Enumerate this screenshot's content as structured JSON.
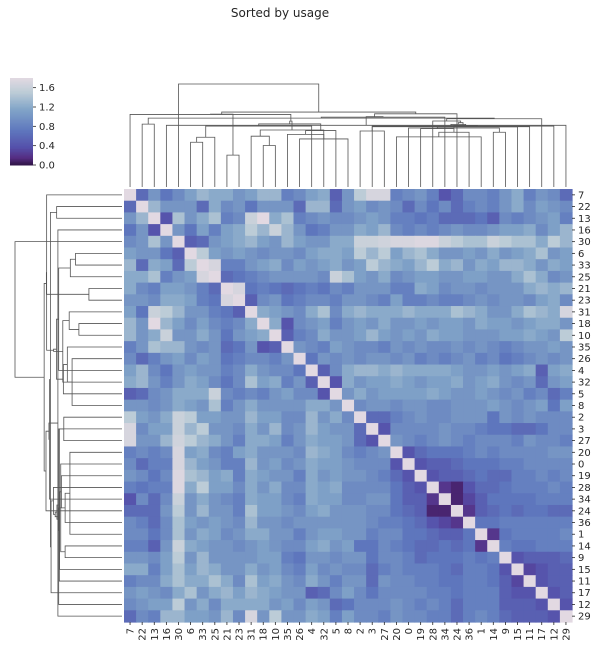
{
  "chart_data": {
    "type": "heatmap",
    "title": "Sorted by usage",
    "labels": [
      "7",
      "22",
      "13",
      "16",
      "30",
      "6",
      "33",
      "25",
      "21",
      "23",
      "31",
      "18",
      "10",
      "35",
      "26",
      "4",
      "32",
      "5",
      "8",
      "2",
      "3",
      "27",
      "20",
      "0",
      "19",
      "28",
      "34",
      "24",
      "36",
      "1",
      "14",
      "9",
      "15",
      "11",
      "17",
      "12",
      "29"
    ],
    "colorbar": {
      "ticks": [
        "0.0",
        "0.4",
        "0.8",
        "1.2",
        "1.6"
      ],
      "min": 0.0,
      "max": 1.8,
      "colormap": "twilight_shifted"
    },
    "values": [
      [
        1.8,
        0.6,
        1.0,
        0.7,
        0.9,
        1.1,
        1.3,
        1.2,
        1.2,
        1.0,
        1.1,
        1.3,
        1.3,
        0.8,
        0.9,
        1.1,
        1.2,
        0.5,
        1.0,
        1.5,
        1.7,
        1.7,
        0.8,
        0.9,
        1.0,
        0.8,
        0.4,
        0.6,
        0.9,
        0.9,
        0.8,
        1.0,
        1.2,
        0.8,
        1.0,
        0.9,
        0.6
      ],
      [
        0.6,
        1.8,
        1.3,
        1.0,
        1.0,
        1.0,
        0.6,
        1.2,
        0.9,
        1.0,
        0.7,
        1.0,
        1.0,
        1.0,
        0.6,
        1.3,
        1.3,
        0.6,
        1.0,
        1.1,
        0.9,
        1.0,
        0.9,
        0.6,
        0.9,
        0.7,
        0.9,
        0.6,
        0.8,
        0.9,
        0.8,
        1.0,
        1.2,
        0.9,
        1.1,
        1.0,
        0.9
      ],
      [
        1.0,
        1.3,
        1.8,
        0.4,
        1.4,
        1.0,
        1.2,
        1.4,
        0.8,
        0.9,
        1.6,
        1.8,
        1.2,
        1.4,
        0.8,
        0.9,
        1.0,
        0.9,
        0.9,
        1.0,
        1.1,
        1.0,
        0.8,
        0.8,
        0.7,
        0.8,
        0.6,
        0.6,
        0.6,
        0.7,
        0.5,
        0.9,
        0.8,
        0.9,
        1.0,
        1.1,
        0.8
      ],
      [
        0.7,
        1.0,
        0.4,
        1.8,
        1.0,
        0.7,
        1.1,
        0.8,
        1.1,
        1.2,
        1.5,
        1.3,
        1.6,
        1.3,
        1.0,
        0.7,
        0.8,
        1.0,
        1.0,
        1.2,
        1.1,
        1.3,
        0.9,
        0.8,
        0.9,
        0.8,
        0.9,
        1.0,
        0.9,
        0.9,
        1.0,
        1.1,
        1.1,
        1.2,
        0.9,
        1.1,
        1.3
      ],
      [
        0.9,
        1.0,
        1.4,
        1.0,
        1.8,
        0.5,
        0.6,
        1.0,
        1.1,
        1.2,
        1.3,
        1.1,
        1.0,
        1.3,
        1.1,
        1.0,
        1.0,
        1.2,
        1.2,
        1.6,
        1.6,
        1.65,
        1.7,
        1.7,
        1.75,
        1.75,
        1.6,
        1.5,
        1.4,
        1.4,
        1.6,
        1.5,
        1.4,
        1.4,
        1.2,
        1.5,
        1.3
      ],
      [
        1.1,
        1.0,
        1.0,
        0.7,
        0.5,
        1.8,
        1.5,
        1.1,
        1.0,
        1.1,
        1.0,
        0.9,
        1.0,
        1.0,
        0.9,
        1.1,
        1.2,
        1.2,
        1.1,
        1.5,
        1.3,
        1.5,
        1.1,
        1.3,
        1.4,
        1.2,
        1.0,
        1.0,
        1.1,
        1.0,
        1.2,
        1.0,
        1.1,
        1.2,
        1.4,
        1.0,
        1.1
      ],
      [
        1.3,
        0.6,
        1.2,
        1.1,
        0.6,
        1.5,
        1.8,
        1.7,
        0.8,
        0.8,
        1.0,
        1.1,
        1.2,
        0.9,
        1.1,
        1.0,
        1.1,
        1.2,
        1.0,
        1.1,
        1.5,
        1.3,
        1.2,
        1.1,
        1.3,
        1.5,
        1.2,
        1.3,
        1.0,
        1.2,
        1.1,
        1.3,
        1.3,
        1.2,
        1.0,
        1.2,
        1.1
      ],
      [
        1.2,
        1.2,
        1.4,
        0.8,
        1.0,
        1.1,
        1.7,
        1.8,
        0.6,
        0.7,
        0.8,
        0.9,
        1.0,
        1.0,
        1.0,
        1.0,
        0.9,
        1.6,
        1.4,
        1.1,
        1.0,
        1.2,
        0.9,
        1.0,
        1.1,
        1.1,
        1.0,
        1.0,
        1.1,
        1.1,
        1.0,
        1.0,
        1.2,
        1.4,
        1.2,
        0.9,
        1.0
      ],
      [
        1.2,
        0.9,
        0.8,
        1.1,
        1.1,
        1.0,
        0.8,
        0.6,
        1.8,
        1.7,
        0.7,
        0.8,
        0.7,
        0.6,
        0.7,
        0.8,
        0.7,
        0.9,
        0.8,
        1.0,
        1.0,
        1.0,
        0.8,
        0.8,
        1.2,
        1.1,
        0.9,
        1.0,
        1.0,
        0.9,
        1.0,
        1.0,
        1.0,
        1.2,
        1.3,
        1.2,
        1.3
      ],
      [
        1.0,
        1.0,
        0.9,
        1.2,
        1.2,
        1.1,
        0.8,
        0.7,
        1.7,
        1.8,
        0.5,
        0.9,
        1.0,
        0.7,
        0.8,
        0.9,
        0.9,
        0.8,
        1.0,
        1.0,
        0.9,
        0.8,
        1.1,
        0.8,
        0.8,
        0.9,
        0.8,
        0.8,
        0.9,
        1.0,
        0.9,
        1.0,
        1.0,
        0.9,
        1.1,
        1.2,
        0.9
      ],
      [
        1.1,
        0.7,
        1.6,
        1.5,
        1.3,
        1.0,
        1.0,
        0.8,
        0.7,
        0.5,
        1.8,
        1.2,
        1.1,
        1.0,
        0.9,
        1.2,
        1.4,
        0.9,
        1.2,
        1.3,
        1.2,
        1.2,
        1.2,
        1.3,
        1.2,
        1.2,
        1.2,
        1.4,
        1.3,
        1.2,
        1.0,
        1.0,
        1.2,
        1.4,
        1.3,
        1.2,
        1.7
      ],
      [
        1.3,
        1.0,
        1.8,
        1.3,
        1.1,
        0.9,
        1.1,
        0.9,
        0.8,
        0.9,
        1.2,
        1.8,
        1.2,
        0.4,
        0.9,
        1.0,
        1.1,
        0.8,
        1.0,
        1.1,
        1.0,
        1.2,
        1.0,
        1.0,
        1.1,
        1.0,
        1.1,
        1.1,
        1.0,
        1.2,
        1.1,
        1.1,
        1.0,
        1.1,
        1.2,
        1.2,
        1.0
      ],
      [
        1.3,
        1.0,
        1.2,
        1.6,
        1.0,
        1.0,
        1.2,
        1.0,
        0.7,
        1.0,
        1.1,
        1.2,
        1.8,
        0.5,
        0.8,
        0.9,
        1.2,
        1.0,
        1.0,
        1.1,
        1.3,
        1.1,
        1.0,
        1.1,
        1.0,
        1.2,
        1.1,
        1.1,
        1.0,
        1.0,
        1.0,
        1.1,
        1.1,
        1.2,
        1.1,
        1.0,
        1.5
      ],
      [
        0.8,
        1.0,
        1.4,
        1.3,
        1.3,
        1.0,
        0.9,
        1.0,
        0.6,
        0.7,
        1.0,
        0.4,
        0.5,
        1.8,
        1.0,
        0.9,
        0.8,
        1.1,
        1.0,
        0.9,
        0.9,
        0.8,
        1.0,
        0.9,
        1.0,
        0.9,
        0.9,
        1.0,
        0.9,
        1.0,
        0.9,
        0.8,
        0.9,
        1.0,
        1.0,
        1.1,
        1.0
      ],
      [
        0.9,
        0.6,
        0.8,
        1.0,
        1.1,
        0.9,
        1.1,
        1.0,
        0.7,
        0.8,
        0.9,
        0.9,
        0.8,
        1.0,
        1.8,
        0.7,
        1.0,
        0.9,
        1.0,
        0.9,
        1.0,
        1.0,
        0.9,
        1.0,
        0.8,
        0.9,
        0.8,
        0.9,
        1.0,
        0.8,
        0.9,
        0.7,
        0.8,
        0.9,
        1.0,
        0.9,
        1.0
      ],
      [
        1.1,
        1.3,
        0.9,
        0.7,
        1.0,
        1.1,
        1.0,
        1.0,
        0.8,
        0.9,
        1.2,
        1.0,
        0.9,
        0.9,
        0.7,
        1.8,
        0.5,
        0.9,
        1.2,
        1.3,
        1.3,
        1.2,
        1.3,
        1.2,
        1.2,
        1.2,
        1.2,
        1.1,
        1.0,
        1.0,
        1.1,
        1.0,
        1.1,
        1.2,
        0.5,
        1.1,
        1.2
      ],
      [
        1.2,
        1.3,
        1.0,
        0.8,
        1.0,
        1.2,
        1.1,
        0.9,
        0.7,
        0.9,
        1.4,
        1.1,
        1.2,
        0.8,
        1.0,
        0.5,
        1.8,
        0.4,
        1.2,
        1.0,
        1.1,
        1.1,
        1.2,
        1.1,
        1.0,
        1.1,
        1.1,
        1.2,
        1.0,
        1.1,
        1.2,
        1.0,
        0.9,
        1.0,
        0.6,
        1.0,
        1.1
      ],
      [
        0.5,
        0.6,
        0.9,
        1.0,
        1.2,
        1.2,
        1.2,
        1.6,
        0.9,
        0.8,
        0.9,
        0.8,
        1.0,
        1.1,
        0.9,
        0.9,
        0.4,
        1.8,
        1.0,
        1.2,
        1.0,
        1.1,
        1.1,
        1.1,
        1.1,
        1.2,
        1.1,
        1.0,
        1.0,
        1.1,
        1.0,
        0.9,
        1.0,
        0.8,
        0.9,
        0.6,
        0.8
      ],
      [
        1.0,
        1.0,
        0.9,
        1.0,
        1.2,
        1.1,
        1.0,
        1.4,
        0.8,
        1.0,
        1.2,
        1.0,
        1.0,
        1.0,
        1.0,
        1.2,
        1.2,
        1.0,
        1.8,
        0.9,
        1.0,
        1.0,
        0.9,
        1.0,
        1.0,
        0.9,
        0.9,
        1.0,
        1.0,
        1.0,
        1.1,
        1.0,
        0.9,
        1.0,
        1.1,
        0.7,
        1.1
      ],
      [
        1.5,
        1.1,
        1.0,
        1.2,
        1.6,
        1.5,
        1.1,
        1.1,
        1.0,
        1.0,
        1.3,
        1.1,
        1.1,
        0.9,
        0.9,
        1.3,
        1.0,
        1.2,
        0.9,
        1.8,
        0.6,
        0.6,
        0.8,
        0.9,
        1.0,
        0.9,
        0.9,
        1.0,
        1.0,
        1.0,
        0.7,
        1.0,
        0.9,
        1.0,
        0.9,
        0.9,
        0.9
      ],
      [
        1.7,
        0.9,
        1.1,
        1.1,
        1.6,
        1.3,
        1.5,
        1.0,
        1.0,
        0.9,
        1.2,
        1.0,
        1.3,
        0.9,
        1.0,
        1.3,
        1.1,
        1.0,
        1.0,
        0.6,
        1.8,
        0.4,
        0.9,
        0.9,
        0.9,
        0.9,
        1.0,
        0.9,
        0.9,
        0.8,
        0.7,
        0.7,
        0.6,
        0.6,
        0.7,
        0.9,
        0.9
      ],
      [
        1.7,
        1.0,
        1.0,
        1.3,
        1.65,
        1.5,
        1.3,
        1.2,
        1.0,
        0.8,
        1.2,
        1.2,
        1.1,
        0.8,
        1.0,
        1.2,
        1.1,
        1.1,
        1.0,
        0.6,
        0.4,
        1.8,
        1.0,
        0.9,
        0.8,
        0.9,
        1.0,
        0.9,
        0.8,
        0.9,
        0.9,
        0.9,
        0.8,
        1.0,
        0.9,
        0.9,
        0.8
      ],
      [
        0.8,
        0.9,
        0.8,
        0.9,
        1.7,
        1.1,
        1.2,
        0.9,
        0.8,
        1.1,
        1.2,
        1.0,
        1.0,
        1.0,
        0.9,
        1.3,
        1.2,
        1.1,
        0.9,
        0.8,
        0.9,
        1.0,
        1.8,
        0.4,
        0.6,
        0.7,
        0.7,
        0.7,
        0.8,
        0.9,
        0.8,
        0.9,
        0.9,
        0.9,
        0.9,
        1.0,
        1.0
      ],
      [
        0.9,
        0.6,
        0.8,
        0.8,
        1.7,
        1.3,
        1.1,
        1.0,
        0.8,
        0.8,
        1.3,
        1.0,
        1.1,
        0.9,
        1.0,
        1.2,
        1.1,
        1.1,
        1.0,
        0.9,
        0.9,
        0.9,
        0.4,
        1.8,
        0.4,
        0.5,
        0.5,
        0.6,
        0.7,
        0.7,
        0.7,
        0.8,
        0.8,
        0.9,
        0.9,
        0.9,
        0.9
      ],
      [
        1.0,
        0.9,
        0.7,
        0.9,
        1.75,
        1.4,
        1.3,
        1.1,
        1.2,
        0.8,
        1.2,
        1.1,
        1.0,
        1.0,
        0.8,
        1.2,
        1.0,
        1.1,
        1.0,
        1.0,
        0.9,
        0.8,
        0.6,
        0.4,
        1.8,
        0.4,
        0.5,
        0.5,
        0.6,
        0.7,
        0.6,
        0.6,
        0.8,
        0.8,
        0.9,
        0.8,
        0.9
      ],
      [
        0.8,
        0.7,
        0.8,
        0.8,
        1.75,
        1.2,
        1.5,
        1.1,
        1.1,
        0.9,
        1.2,
        1.0,
        1.2,
        0.9,
        0.9,
        1.2,
        1.1,
        1.2,
        0.9,
        0.9,
        0.9,
        0.9,
        0.7,
        0.5,
        0.4,
        1.8,
        0.2,
        0.1,
        0.4,
        0.6,
        0.6,
        0.7,
        0.8,
        0.8,
        0.8,
        0.9,
        0.8
      ],
      [
        0.4,
        0.9,
        0.6,
        0.9,
        1.6,
        1.0,
        1.2,
        1.0,
        0.9,
        0.8,
        1.2,
        1.1,
        1.1,
        0.9,
        0.8,
        1.2,
        1.1,
        1.1,
        0.9,
        0.9,
        1.0,
        1.0,
        0.7,
        0.5,
        0.5,
        0.2,
        1.8,
        0.1,
        0.3,
        0.5,
        0.7,
        0.7,
        0.7,
        0.7,
        0.8,
        0.8,
        0.8
      ],
      [
        0.6,
        0.6,
        0.6,
        1.0,
        1.5,
        1.0,
        1.3,
        1.0,
        1.0,
        0.8,
        1.4,
        1.1,
        1.1,
        1.0,
        0.9,
        1.1,
        1.2,
        1.0,
        1.0,
        1.0,
        0.9,
        0.9,
        0.7,
        0.6,
        0.5,
        0.1,
        0.1,
        1.8,
        0.2,
        0.5,
        0.6,
        0.7,
        0.6,
        0.7,
        0.7,
        0.6,
        0.6
      ],
      [
        0.9,
        0.8,
        0.6,
        0.9,
        1.4,
        1.1,
        1.0,
        1.1,
        1.0,
        0.9,
        1.3,
        1.0,
        1.0,
        0.9,
        1.0,
        1.0,
        1.0,
        1.0,
        1.0,
        1.0,
        0.9,
        0.8,
        0.8,
        0.7,
        0.6,
        0.4,
        0.3,
        0.2,
        1.8,
        0.7,
        0.7,
        0.8,
        0.8,
        0.8,
        0.8,
        0.8,
        0.8
      ],
      [
        0.9,
        0.9,
        0.7,
        0.9,
        1.4,
        1.0,
        1.2,
        1.1,
        0.9,
        1.0,
        1.2,
        1.2,
        1.0,
        1.0,
        0.8,
        1.0,
        1.1,
        1.1,
        1.0,
        1.0,
        0.8,
        0.9,
        0.9,
        0.7,
        0.7,
        0.6,
        0.5,
        0.5,
        0.7,
        1.8,
        0.2,
        0.7,
        0.8,
        0.8,
        0.8,
        0.8,
        0.9
      ],
      [
        0.8,
        0.8,
        0.5,
        1.0,
        1.6,
        1.2,
        1.1,
        1.0,
        1.0,
        0.9,
        1.0,
        1.1,
        1.0,
        0.9,
        0.9,
        1.1,
        1.2,
        1.0,
        1.1,
        0.7,
        0.7,
        0.9,
        0.8,
        0.7,
        0.6,
        0.6,
        0.7,
        0.6,
        0.7,
        0.2,
        1.8,
        0.8,
        0.7,
        0.7,
        0.8,
        0.8,
        0.8
      ],
      [
        1.0,
        1.0,
        0.9,
        1.1,
        1.5,
        1.0,
        1.3,
        1.0,
        1.0,
        1.0,
        1.0,
        1.1,
        1.1,
        0.8,
        0.7,
        1.0,
        1.0,
        0.9,
        1.0,
        1.0,
        0.7,
        0.9,
        0.9,
        0.8,
        0.6,
        0.7,
        0.7,
        0.7,
        0.8,
        0.7,
        0.8,
        1.8,
        0.4,
        0.5,
        0.5,
        0.5,
        0.6
      ],
      [
        1.2,
        1.2,
        0.8,
        1.1,
        1.4,
        1.1,
        1.3,
        1.2,
        1.0,
        1.0,
        1.2,
        1.0,
        1.1,
        0.9,
        0.8,
        1.1,
        0.9,
        1.0,
        0.9,
        0.9,
        0.6,
        0.8,
        0.9,
        0.8,
        0.8,
        0.8,
        0.7,
        0.6,
        0.8,
        0.8,
        0.7,
        0.4,
        1.8,
        0.3,
        0.4,
        0.5,
        0.5
      ],
      [
        0.8,
        0.9,
        0.9,
        1.2,
        1.4,
        1.2,
        1.2,
        1.4,
        1.2,
        0.9,
        1.4,
        1.1,
        1.2,
        1.0,
        0.9,
        1.2,
        1.0,
        0.8,
        1.0,
        1.0,
        0.6,
        1.0,
        0.9,
        0.9,
        0.8,
        0.8,
        0.7,
        0.7,
        0.8,
        0.8,
        0.7,
        0.5,
        0.3,
        1.8,
        0.4,
        0.5,
        0.5
      ],
      [
        1.0,
        1.1,
        1.0,
        0.9,
        1.2,
        1.4,
        1.0,
        1.2,
        1.3,
        1.1,
        1.3,
        1.2,
        1.1,
        1.0,
        1.0,
        0.5,
        0.6,
        0.9,
        1.1,
        0.9,
        0.7,
        0.9,
        0.9,
        0.9,
        0.9,
        0.8,
        0.8,
        0.7,
        0.8,
        0.8,
        0.8,
        0.5,
        0.4,
        0.4,
        1.8,
        0.4,
        0.5
      ],
      [
        0.9,
        1.0,
        1.1,
        1.1,
        1.5,
        1.0,
        1.2,
        0.9,
        1.2,
        1.2,
        1.2,
        1.2,
        1.0,
        1.1,
        0.9,
        1.1,
        1.0,
        0.6,
        0.7,
        0.9,
        0.9,
        0.9,
        1.0,
        0.9,
        0.8,
        0.9,
        0.8,
        0.6,
        0.8,
        0.8,
        0.8,
        0.5,
        0.5,
        0.5,
        0.4,
        1.8,
        0.4
      ],
      [
        0.6,
        0.9,
        0.8,
        1.3,
        1.3,
        1.1,
        1.1,
        1.0,
        1.3,
        0.9,
        1.7,
        1.0,
        1.5,
        1.0,
        1.0,
        1.2,
        1.1,
        0.8,
        1.1,
        0.9,
        0.9,
        0.8,
        1.0,
        0.9,
        0.9,
        0.8,
        0.8,
        0.6,
        0.8,
        0.9,
        0.8,
        0.6,
        0.5,
        0.5,
        0.5,
        0.4,
        1.8
      ]
    ]
  }
}
